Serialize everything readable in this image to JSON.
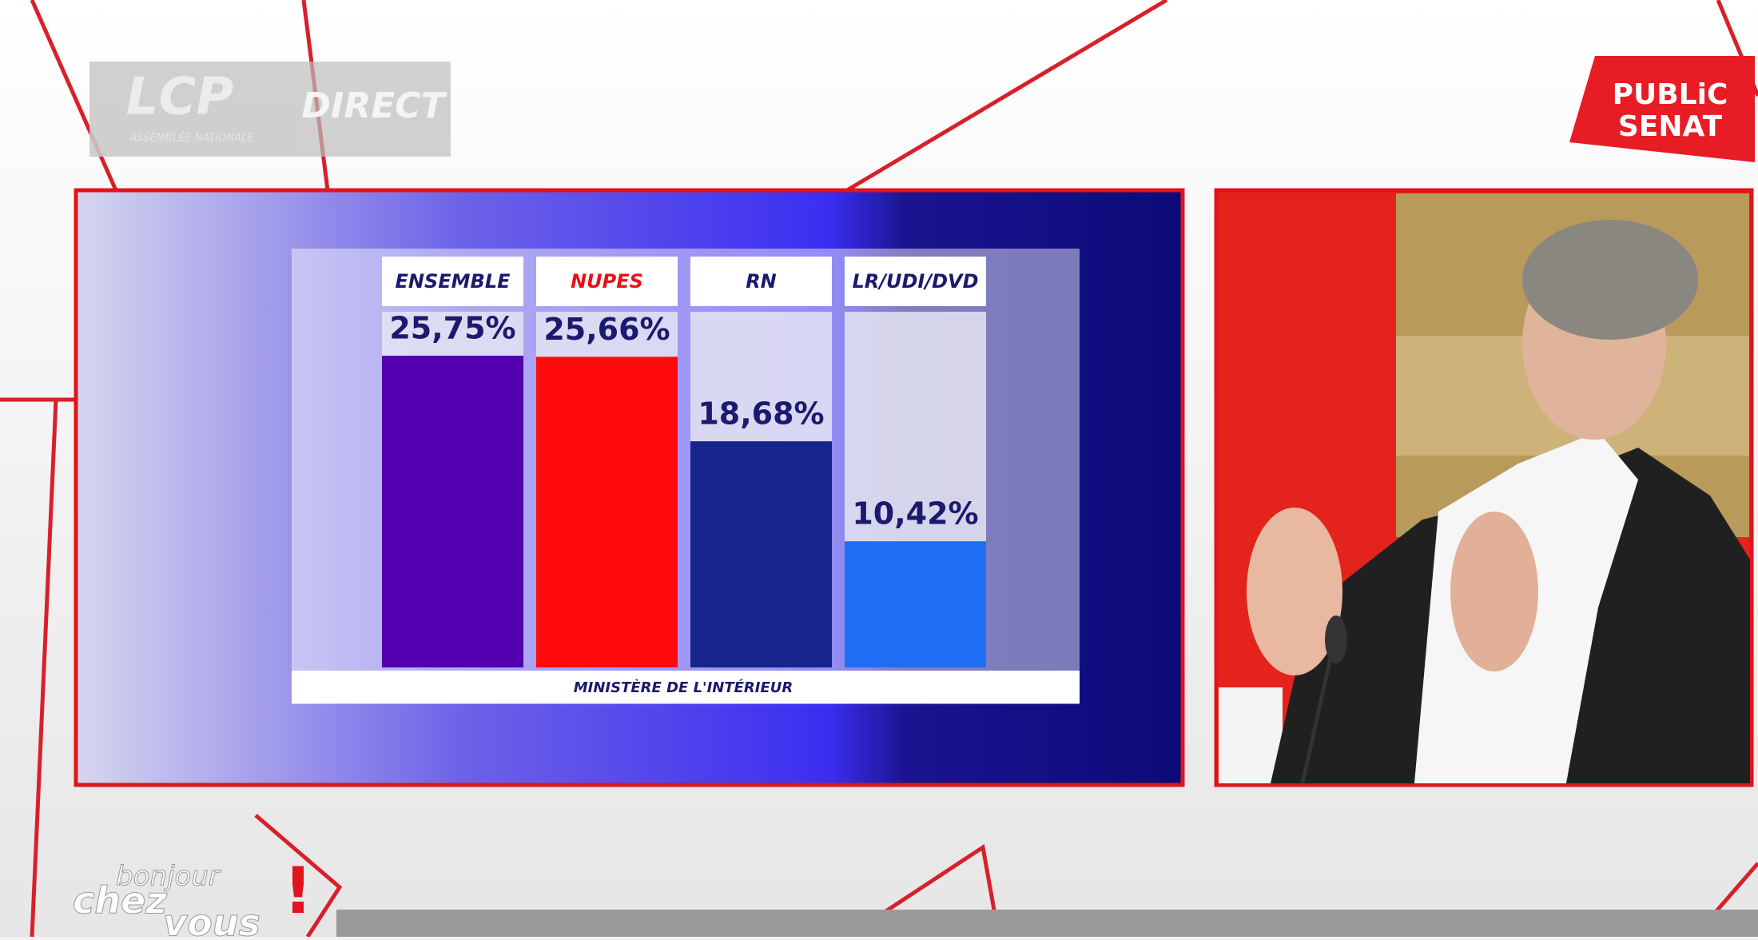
{
  "chart_data": {
    "type": "bar",
    "categories": [
      "ENSEMBLE",
      "NUPES",
      "RN",
      "LR/UDI/DVD"
    ],
    "category_colors": [
      "#1a1a6e",
      "#e8101a",
      "#1a1a6e",
      "#1a1a6e"
    ],
    "values": [
      25.75,
      25.66,
      18.68,
      10.42
    ],
    "value_labels": [
      "25,75%",
      "25,66%",
      "18,68%",
      "10,42%"
    ],
    "colors": [
      "#5200b0",
      "#ff0a0a",
      "#16248c",
      "#1e6ef5"
    ],
    "source": "MINISTÈRE DE L'INTÉRIEUR"
  },
  "overlay": {
    "channel": "LCP",
    "channel_subtitle": "ASSEMBLÉE NATIONALE",
    "live": "DIRECT",
    "partner": [
      "PUBLiC",
      "SENAT"
    ],
    "show": [
      "bonjour",
      "chez",
      "vous",
      "!"
    ]
  }
}
